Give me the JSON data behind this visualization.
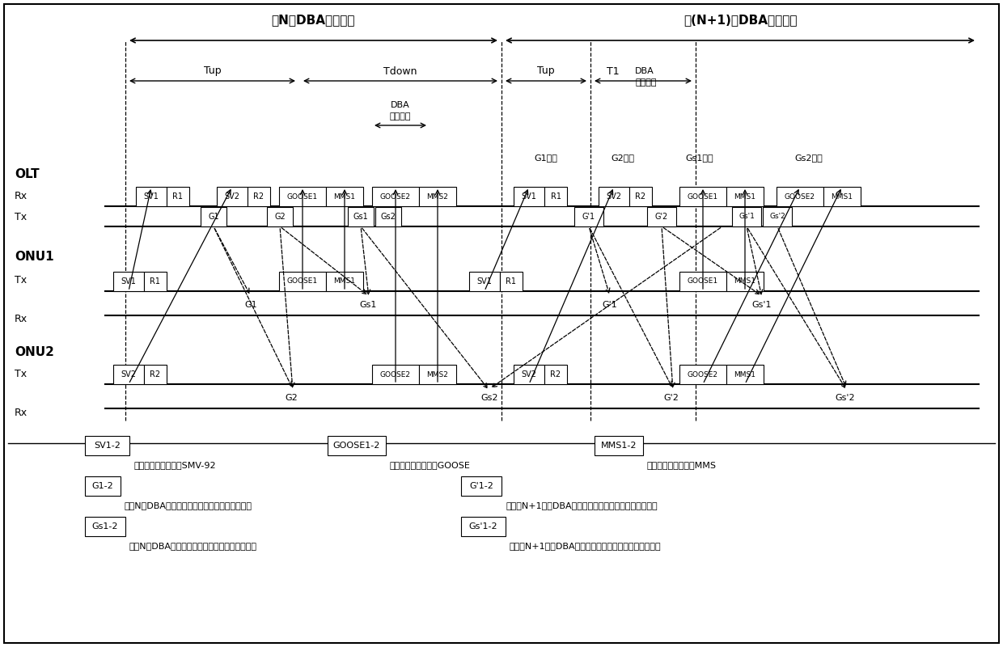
{
  "bg_color": "#ffffff",
  "fig_width": 12.4,
  "fig_height": 8.0,
  "period1_label": "第N个DBA轮询周期",
  "period2_label": "第(N+1)个DBA轮询周期",
  "Tup_label": "Tup",
  "Tdown_label": "Tdown",
  "DBA_label": "DBA\n计算时间",
  "T1_label": "T1",
  "DBA2_label": "DBA\n计算时间",
  "OLT_label": "OLT",
  "ONU1_label": "ONU1",
  "ONU2_label": "ONU2",
  "Rx_label": "Rx",
  "Tx_label": "Tx",
  "G1_win": "G1窗口",
  "G2_win": "G2窗口",
  "Gs1_win": "Gs1窗口",
  "Gs2_win": "Gs2窗口",
  "legend_sv": "SV1-2",
  "legend_sv_desc": "：高优先级数据，如SMV-92",
  "legend_goose": "GOOSE1-2",
  "legend_goose_desc": "：中优先级数据，如GOOSE",
  "legend_mms": "MMS1-2",
  "legend_mms_desc": "：低优先级数据，如MMS",
  "legend_g12": "G1-2",
  "legend_g12_desc": "：第N个DBA周期内第一次高优先级带宽授权报文",
  "legend_gp12": "G’1-2",
  "legend_gp12_desc": "：第（N+1）个DBA周期内第一次高优先级带宽授权报文",
  "legend_gs12": "Gs1-2",
  "legend_gs12_desc": "：第N个DBA周期内第二次低优先级带宽授权报文",
  "legend_gsp12": "Gs’1-2",
  "legend_gsp12_desc": "：第（N+1）个DBA周期内第二次低优先级带宽授权报文"
}
